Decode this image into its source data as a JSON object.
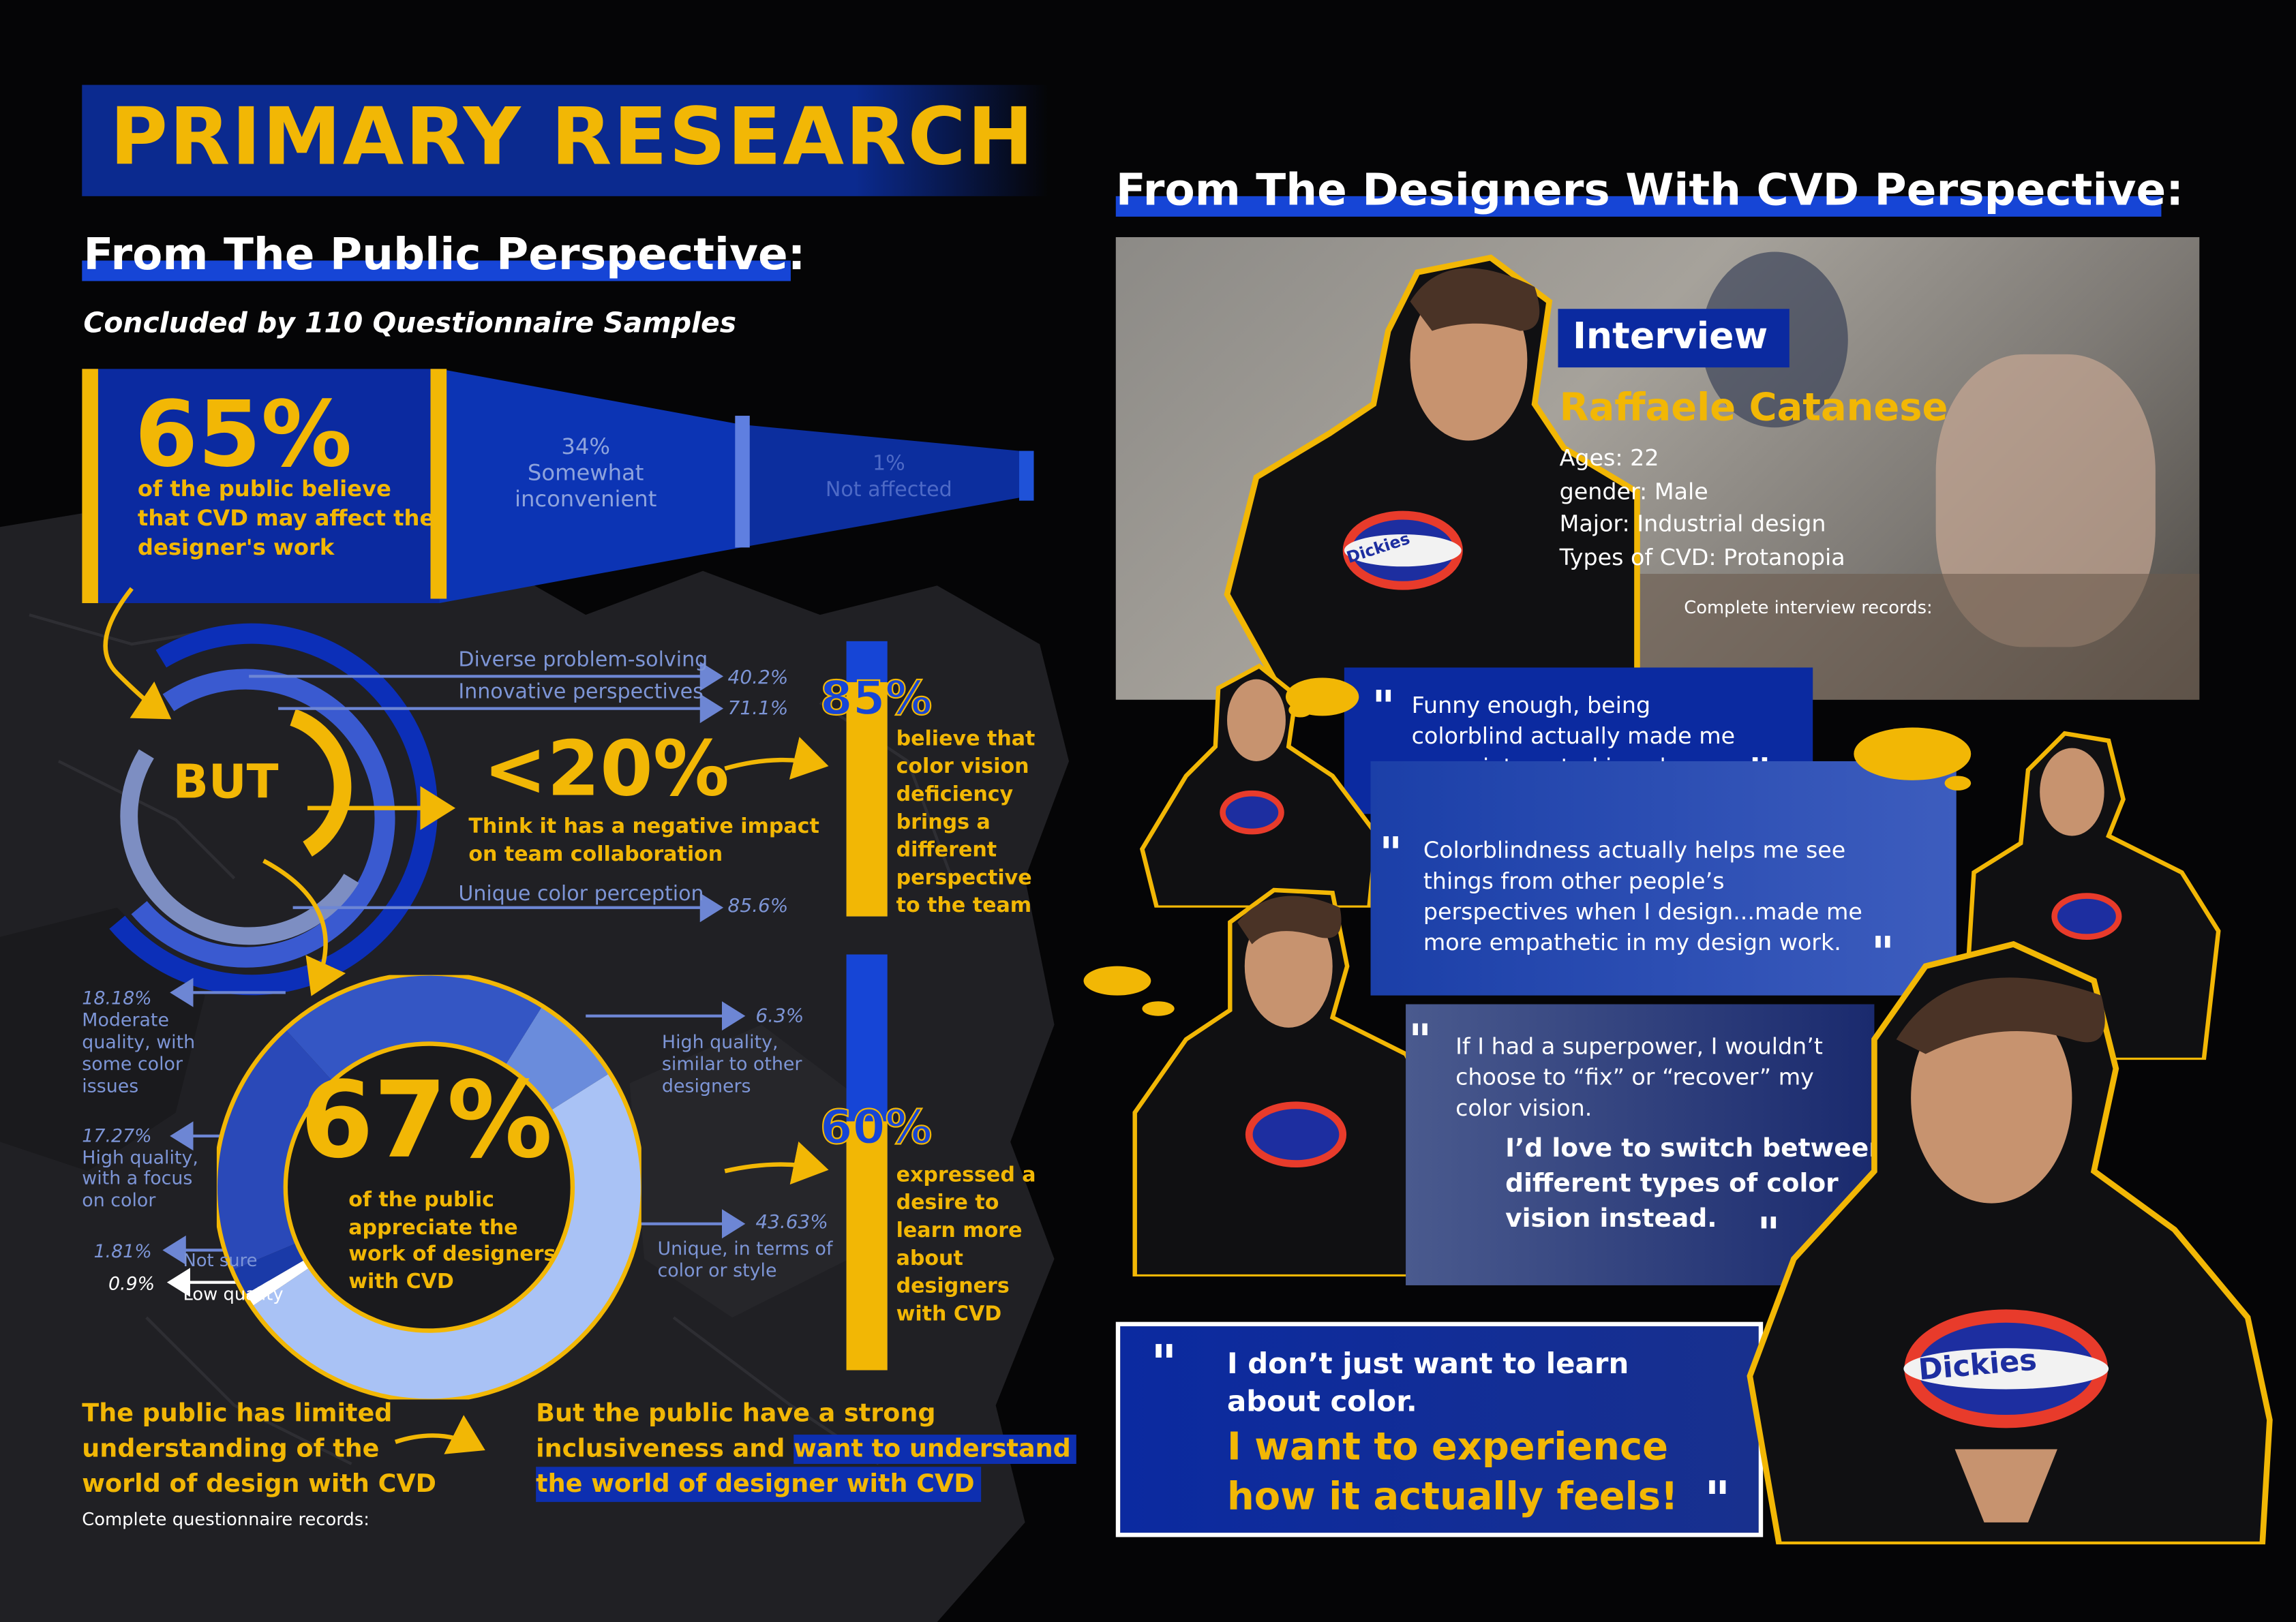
{
  "title": "PRIMARY RESEARCH",
  "public": {
    "heading": "From The Public Perspective:",
    "subheading": "Concluded by 110 Questionnaire Samples",
    "funnel": {
      "main_pct": "65%",
      "main_desc_1": "of the public believe",
      "main_desc_2": "that CVD may affect the",
      "main_desc_3": "designer's work",
      "mid_pct": "34%",
      "mid_label_1": "Somewhat",
      "mid_label_2": "inconvenient",
      "end_pct": "1%",
      "end_label": "Not affected",
      "values": {
        "affect": 65,
        "inconvenient": 34,
        "not_affected": 1
      }
    },
    "but": {
      "label": "BUT",
      "item1": "Diverse problem-solving",
      "item1_pct": "40.2%",
      "item2": "Innovative perspectives",
      "item2_pct": "71.1%",
      "item3": "Unique color perception",
      "item3_pct": "85.6%",
      "lt20": "<20%",
      "lt20_desc_1": "Think it has a negative impact",
      "lt20_desc_2": "on team collaboration"
    },
    "bar85": {
      "pct": "85%",
      "value": 85,
      "desc": [
        "believe that",
        "color vision",
        "deficiency",
        "brings a",
        "different",
        "perspective",
        "to the team"
      ]
    },
    "donut": {
      "pct": "67%",
      "desc_1": "of the public",
      "desc_2": "appreciate the",
      "desc_3": "work of designers",
      "desc_4": "with CVD",
      "slices": [
        {
          "label": "Unique, in terms of color or style",
          "value": 43.63
        },
        {
          "label": "Moderate quality, with some color issues",
          "value": 18.18
        },
        {
          "label": "High quality, with a focus on color",
          "value": 17.27
        },
        {
          "label": "High quality, similar to other designers",
          "value": 6.3
        },
        {
          "label": "Not sure",
          "value": 1.81
        },
        {
          "label": "Low quality",
          "value": 0.9
        }
      ],
      "l1_pct": "18.18%",
      "l1_a": "Moderate",
      "l1_b": "quality, with",
      "l1_c": "some color",
      "l1_d": "issues",
      "l2_pct": "17.27%",
      "l2_a": "High quality,",
      "l2_b": "with a focus",
      "l2_c": "on color",
      "l3_pct": "1.81%",
      "l3_label": "Not sure",
      "l4_pct": "0.9%",
      "l4_label": "Low quality",
      "r1_pct": "6.3%",
      "r1_a": "High quality,",
      "r1_b": "similar to other",
      "r1_c": "designers",
      "r2_pct": "43.63%",
      "r2_a": "Unique, in terms of",
      "r2_b": "color or style"
    },
    "bar60": {
      "pct": "60%",
      "value": 60,
      "desc": [
        "expressed a",
        "desire to",
        "learn more",
        "about",
        "designers",
        "with CVD"
      ]
    },
    "conclusion_left_1": "The public has limited",
    "conclusion_left_2": "understanding of the",
    "conclusion_left_3": "world of design with CVD",
    "records": "Complete questionnaire records:",
    "conclusion_right_1": "But the public have a strong",
    "conclusion_right_2a": "inclusiveness and ",
    "conclusion_right_2b": "want to understand",
    "conclusion_right_3": "the world of designer with CVD"
  },
  "designers": {
    "heading": "From The Designers With CVD Perspective:",
    "interview_label": "Interview",
    "name": "Raffaele Catanese",
    "ages": "Ages: 22",
    "gender": "gender: Male",
    "major": "Major: Industrial design",
    "cvd_type": "Types of CVD: Protanopia",
    "records": "Complete interview records:",
    "shirt_logo": "Dickies",
    "quote1_a": "Funny enough, being",
    "quote1_b": "colorblind actually made me",
    "quote1_c": "super interested in colors.",
    "quote2_a": "Colorblindness actually helps me see",
    "quote2_b": "things from other people’s",
    "quote2_c": "perspectives when I design...made me",
    "quote2_d": "more empathetic in my design work.",
    "quote3_a": "If I had a superpower, I wouldn’t",
    "quote3_b": "choose to “fix” or “recover” my",
    "quote3_c": "color vision.",
    "quote3_d": "I’d love to switch between",
    "quote3_e": "different types of color",
    "quote3_f": "vision instead.",
    "quote4_a": "I don’t just want to learn",
    "quote4_b": "about color.",
    "quote4_c": "I want to experience",
    "quote4_d": "how it actually feels!"
  },
  "colors": {
    "yellow": "#f2b705",
    "blue": "#0b2a8f",
    "bright_blue": "#1645d6",
    "light_blue": "#a9c2f5"
  }
}
